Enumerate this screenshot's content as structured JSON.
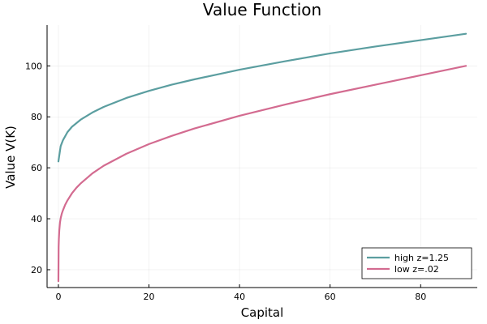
{
  "chart_data": {
    "type": "line",
    "title": "Value Function",
    "xlabel": "Capital",
    "ylabel": "Value V(K)",
    "xlim": [
      -2.5,
      92.5
    ],
    "ylim": [
      13,
      116
    ],
    "xticks": [
      0,
      20,
      40,
      60,
      80
    ],
    "yticks": [
      20,
      40,
      60,
      80,
      100
    ],
    "grid": true,
    "legend_position": "bottom-right",
    "series": [
      {
        "name": "high z=1.25",
        "color": "#5b9ea0",
        "x": [
          0,
          0.5,
          1,
          2,
          3,
          5,
          7.5,
          10,
          15,
          20,
          25,
          30,
          40,
          50,
          60,
          70,
          80,
          90
        ],
        "y": [
          62.5,
          68.5,
          70.8,
          74.0,
          76.1,
          79.0,
          81.7,
          83.9,
          87.4,
          90.2,
          92.6,
          94.7,
          98.5,
          101.8,
          104.9,
          107.6,
          110.1,
          112.6
        ]
      },
      {
        "name": "low z=.02",
        "color": "#d36b90",
        "x": [
          0,
          0.05,
          0.1,
          0.2,
          0.35,
          0.5,
          0.75,
          1,
          1.5,
          2,
          3,
          4,
          5,
          7.5,
          10,
          15,
          20,
          25,
          30,
          40,
          50,
          60,
          70,
          80,
          90
        ],
        "y": [
          15.5,
          29.0,
          32.0,
          35.5,
          38.5,
          40.2,
          42.0,
          43.3,
          45.5,
          47.2,
          50.0,
          52.2,
          54.0,
          57.8,
          60.8,
          65.5,
          69.3,
          72.5,
          75.4,
          80.4,
          84.8,
          88.9,
          92.6,
          96.3,
          100.0
        ]
      }
    ]
  }
}
